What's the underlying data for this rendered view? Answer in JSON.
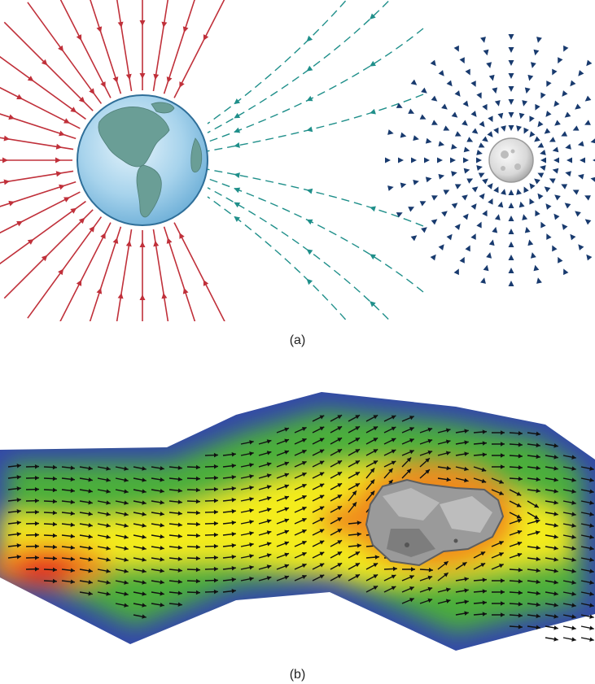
{
  "figure": {
    "panel_a": {
      "caption": "(a)",
      "bodies": [
        {
          "name": "earth",
          "icon": "earth-globe-icon"
        },
        {
          "name": "moon",
          "icon": "moon-icon"
        }
      ],
      "colors": {
        "earth_field": "#c0303a",
        "shared_field": "#1f8f8a",
        "moon_field": "#183a6e",
        "earth_ocean": "#8ec6e6",
        "earth_land": "#6a9e96",
        "moon_surface": "#d4d4d4"
      }
    },
    "panel_b": {
      "caption": "(b)",
      "obstacle": {
        "name": "rock",
        "icon": "rock-icon"
      },
      "colors": {
        "low_speed": "#3348a8",
        "mid_low": "#4caf3a",
        "mid": "#f4ec1a",
        "high": "#f08a1c",
        "max": "#e8211c",
        "arrows": "#111111",
        "rock": "#9a9a9a"
      }
    }
  }
}
